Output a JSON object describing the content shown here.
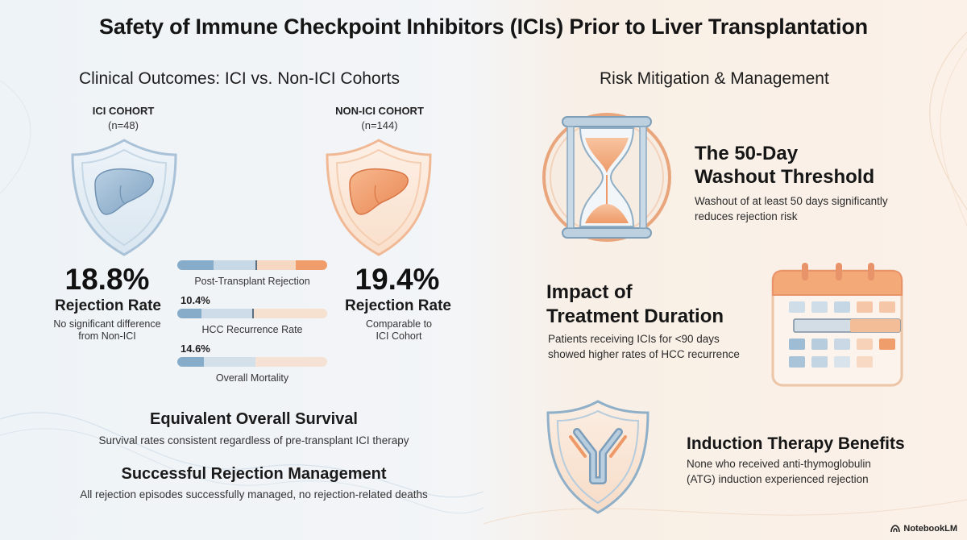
{
  "title": "Safety of Immune Checkpoint Inhibitors (ICIs) Prior to Liver Transplantation",
  "left": {
    "heading": "Clinical Outcomes: ICI vs. Non-ICI Cohorts",
    "ici": {
      "label": "ICI COHORT",
      "n": "(n=48)",
      "rate": "18.8%",
      "rate_label": "Rejection Rate",
      "note_line1": "No significant difference",
      "note_line2": "from Non-ICI"
    },
    "non_ici": {
      "label": "NON-ICI COHORT",
      "n": "(n=144)",
      "rate": "19.4%",
      "rate_label": "Rejection Rate",
      "note_line1": "Comparable to",
      "note_line2": "ICI Cohort"
    },
    "bars": [
      {
        "caption": "Post-Transplant Rejection",
        "value": ""
      },
      {
        "caption": "HCC Recurrence Rate",
        "value": "10.4%"
      },
      {
        "caption": "Overall Mortality",
        "value": "14.6%"
      }
    ],
    "survival": {
      "heading": "Equivalent Overall Survival",
      "body": "Survival rates consistent regardless of pre-transplant ICI therapy"
    },
    "rejection_mgmt": {
      "heading": "Successful Rejection Management",
      "body": "All rejection episodes successfully managed, no rejection-related deaths"
    }
  },
  "right": {
    "heading": "Risk Mitigation & Management",
    "washout": {
      "heading_line1": "The 50-Day",
      "heading_line2": "Washout Threshold",
      "body_line1": "Washout of at least 50 days significantly",
      "body_line2": "reduces rejection risk"
    },
    "duration": {
      "heading_line1": "Impact of",
      "heading_line2": "Treatment Duration",
      "body_line1": "Patients receiving ICIs for <90 days",
      "body_line2": "showed higher rates of HCC recurrence"
    },
    "induction": {
      "heading": "Induction Therapy Benefits",
      "body_line1": "None who received anti-thymoglobulin",
      "body_line2": "(ATG) induction experienced rejection"
    }
  },
  "brand": "NotebookLM",
  "colors": {
    "blue": "#7fa8c9",
    "blue_light": "#c9dbe8",
    "orange": "#f09a6a",
    "orange_light": "#f8d6bf"
  }
}
